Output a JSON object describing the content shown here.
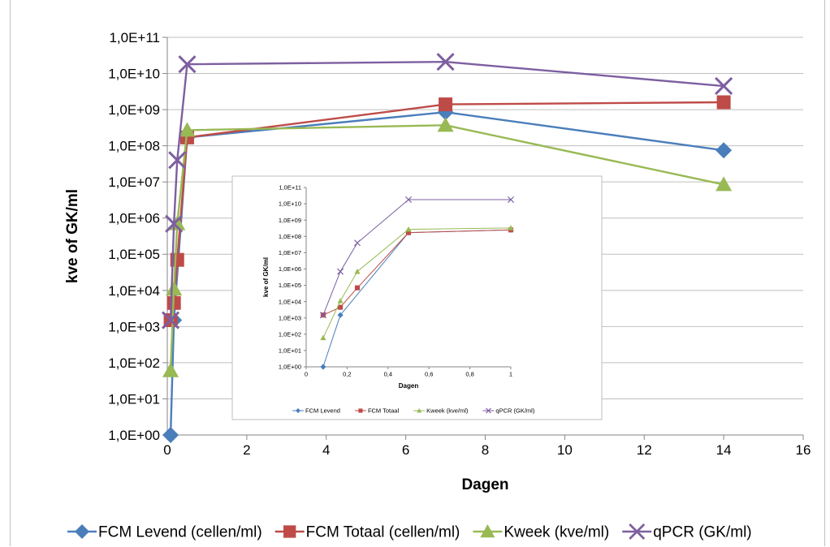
{
  "chart_data": [
    {
      "type": "line",
      "title": "",
      "xlabel": "Dagen",
      "ylabel": "kve of GK/ml",
      "yscale": "log",
      "xlim": [
        0,
        16
      ],
      "ylim": [
        1,
        100000000000
      ],
      "x_ticks": [
        "0",
        "2",
        "4",
        "6",
        "8",
        "10",
        "12",
        "14",
        "16"
      ],
      "y_ticks": [
        "1,0E+00",
        "1,0E+01",
        "1,0E+02",
        "1,0E+03",
        "1,0E+04",
        "1,0E+05",
        "1,0E+06",
        "1,0E+07",
        "1,0E+08",
        "1,0E+09",
        "1,0E+10",
        "1,0E+11"
      ],
      "grid": "horizontal",
      "legend_position": "bottom",
      "series": [
        {
          "name": "FCM Levend (cellen/ml)",
          "color": "#4a7ebb",
          "marker": "diamond",
          "x": [
            0.083,
            0.167,
            0.5,
            7,
            14
          ],
          "y": [
            1,
            1500,
            170000000,
            850000000,
            75000000
          ]
        },
        {
          "name": "FCM Totaal (cellen/ml)",
          "color": "#be4b48",
          "marker": "square",
          "x": [
            0.083,
            0.167,
            0.25,
            0.5,
            7,
            14
          ],
          "y": [
            1500,
            4500,
            70000,
            170000000,
            1400000000,
            1600000000
          ]
        },
        {
          "name": "Kweek (kve/ml)",
          "color": "#98b954",
          "marker": "triangle",
          "x": [
            0.083,
            0.167,
            0.25,
            0.5,
            7,
            14
          ],
          "y": [
            60,
            11000,
            700000,
            270000000,
            370000000,
            8500000
          ]
        },
        {
          "name": "qPCR (GK/ml)",
          "color": "#7d5fa0",
          "marker": "x",
          "x": [
            0.083,
            0.167,
            0.25,
            0.5,
            7,
            14
          ],
          "y": [
            1500,
            700000,
            40000000,
            18000000000,
            21000000000,
            4500000000
          ]
        }
      ]
    },
    {
      "type": "line",
      "title": "",
      "xlabel": "Dagen",
      "ylabel": "kve of GK/ml",
      "yscale": "log",
      "xlim": [
        0,
        1
      ],
      "ylim": [
        1,
        100000000000
      ],
      "x_ticks": [
        "0",
        "0,2",
        "0,4",
        "0,6",
        "0,8",
        "1"
      ],
      "y_ticks": [
        "1,0E+00",
        "1,0E+01",
        "1,0E+02",
        "1,0E+03",
        "1,0E+04",
        "1,0E+05",
        "1,0E+06",
        "1,0E+07",
        "1,0E+08",
        "1,0E+09",
        "1,0E+10",
        "1,0E+11"
      ],
      "grid": "none",
      "legend_position": "bottom",
      "series": [
        {
          "name": "FCM Levend",
          "color": "#4a7ebb",
          "marker": "diamond",
          "x": [
            0.083,
            0.167,
            0.5,
            1
          ],
          "y": [
            1,
            1500,
            170000000,
            250000000
          ]
        },
        {
          "name": "FCM Totaal",
          "color": "#be4b48",
          "marker": "square",
          "x": [
            0.083,
            0.167,
            0.25,
            0.5,
            1
          ],
          "y": [
            1500,
            4500,
            70000,
            170000000,
            250000000
          ]
        },
        {
          "name": "Kweek (kve/ml)",
          "color": "#98b954",
          "marker": "triangle",
          "x": [
            0.083,
            0.167,
            0.25,
            0.5,
            1
          ],
          "y": [
            60,
            11000,
            700000,
            270000000,
            330000000
          ]
        },
        {
          "name": "qPCR (GK/ml)",
          "color": "#7d5fa0",
          "marker": "x",
          "x": [
            0.083,
            0.167,
            0.25,
            0.5,
            1
          ],
          "y": [
            1500,
            700000,
            40000000,
            18000000000,
            18000000000
          ]
        }
      ]
    }
  ]
}
